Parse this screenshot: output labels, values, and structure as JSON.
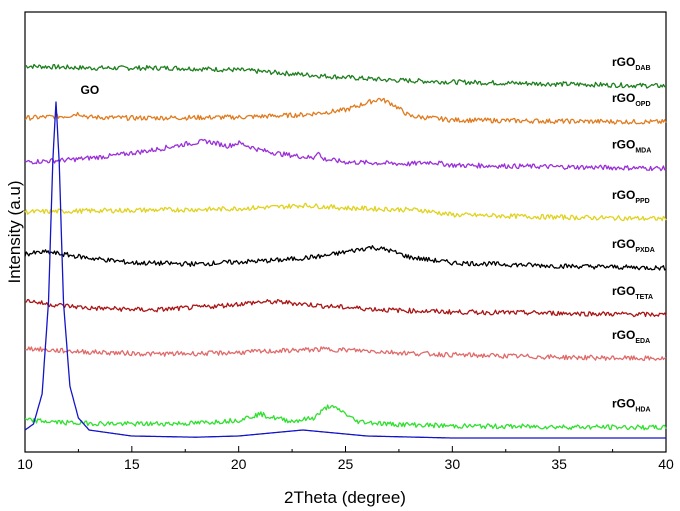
{
  "chart_data": {
    "type": "line",
    "title": "",
    "xlabel": "2Theta (degree)",
    "ylabel": "Intensity (a.u)",
    "xlim": [
      10,
      40
    ],
    "xticks": [
      10,
      15,
      20,
      25,
      30,
      35,
      40
    ],
    "yticks_shown": false,
    "grid": false,
    "legend": "inline-right",
    "series": [
      {
        "label_main": "rGO",
        "label_sub": "DAB",
        "color": "#1e7f1e",
        "points": [
          [
            10,
            0.94
          ],
          [
            13,
            0.935
          ],
          [
            17,
            0.935
          ],
          [
            20,
            0.93
          ],
          [
            24,
            0.915
          ],
          [
            27,
            0.905
          ],
          [
            30,
            0.9
          ],
          [
            35,
            0.895
          ],
          [
            40,
            0.89
          ]
        ]
      },
      {
        "label_main": "rGO",
        "label_sub": "OPD",
        "color": "#e07b1f",
        "points": [
          [
            10,
            0.81
          ],
          [
            12,
            0.815
          ],
          [
            12.5,
            0.822
          ],
          [
            13,
            0.812
          ],
          [
            15,
            0.81
          ],
          [
            20,
            0.812
          ],
          [
            23,
            0.818
          ],
          [
            25,
            0.83
          ],
          [
            26,
            0.848
          ],
          [
            26.6,
            0.858
          ],
          [
            27.2,
            0.845
          ],
          [
            28,
            0.815
          ],
          [
            30,
            0.805
          ],
          [
            35,
            0.802
          ],
          [
            40,
            0.8
          ]
        ]
      },
      {
        "label_main": "rGO",
        "label_sub": "MDA",
        "color": "#9a30d8",
        "points": [
          [
            10,
            0.7
          ],
          [
            12,
            0.705
          ],
          [
            14,
            0.715
          ],
          [
            16,
            0.73
          ],
          [
            17.5,
            0.745
          ],
          [
            18.5,
            0.752
          ],
          [
            19.5,
            0.74
          ],
          [
            20,
            0.748
          ],
          [
            21,
            0.73
          ],
          [
            22,
            0.72
          ],
          [
            23.5,
            0.71
          ],
          [
            23.7,
            0.728
          ],
          [
            23.9,
            0.708
          ],
          [
            25,
            0.7
          ],
          [
            28,
            0.695
          ],
          [
            29,
            0.7
          ],
          [
            30,
            0.692
          ],
          [
            35,
            0.688
          ],
          [
            40,
            0.684
          ]
        ]
      },
      {
        "label_main": "rGO",
        "label_sub": "PPD",
        "color": "#e0d21f",
        "points": [
          [
            10,
            0.575
          ],
          [
            13,
            0.578
          ],
          [
            16,
            0.58
          ],
          [
            19,
            0.582
          ],
          [
            22,
            0.588
          ],
          [
            23,
            0.592
          ],
          [
            25,
            0.585
          ],
          [
            27,
            0.582
          ],
          [
            28.5,
            0.58
          ],
          [
            29,
            0.576
          ],
          [
            30,
            0.568
          ],
          [
            35,
            0.562
          ],
          [
            40,
            0.558
          ]
        ]
      },
      {
        "label_main": "rGO",
        "label_sub": "PXDA",
        "color": "#000000",
        "points": [
          [
            10,
            0.47
          ],
          [
            11,
            0.475
          ],
          [
            13,
            0.46
          ],
          [
            15,
            0.448
          ],
          [
            18,
            0.445
          ],
          [
            20,
            0.45
          ],
          [
            22,
            0.455
          ],
          [
            24,
            0.465
          ],
          [
            25.5,
            0.48
          ],
          [
            26.2,
            0.487
          ],
          [
            27,
            0.48
          ],
          [
            28,
            0.462
          ],
          [
            30,
            0.448
          ],
          [
            35,
            0.44
          ],
          [
            40,
            0.435
          ]
        ]
      },
      {
        "label_main": "rGO",
        "label_sub": "TETA",
        "color": "#aa1515",
        "points": [
          [
            10,
            0.355
          ],
          [
            11,
            0.345
          ],
          [
            13,
            0.335
          ],
          [
            16,
            0.33
          ],
          [
            19,
            0.34
          ],
          [
            21,
            0.35
          ],
          [
            22,
            0.35
          ],
          [
            24,
            0.34
          ],
          [
            27,
            0.33
          ],
          [
            30,
            0.325
          ],
          [
            35,
            0.322
          ],
          [
            40,
            0.318
          ]
        ]
      },
      {
        "label_main": "rGO",
        "label_sub": "EDA",
        "color": "#e06a6a",
        "points": [
          [
            10,
            0.235
          ],
          [
            11,
            0.23
          ],
          [
            13,
            0.225
          ],
          [
            16,
            0.22
          ],
          [
            19,
            0.222
          ],
          [
            22,
            0.228
          ],
          [
            24,
            0.232
          ],
          [
            26,
            0.228
          ],
          [
            28,
            0.222
          ],
          [
            30,
            0.218
          ],
          [
            35,
            0.212
          ],
          [
            40,
            0.208
          ]
        ]
      },
      {
        "label_main": "rGO",
        "label_sub": "HDA",
        "color": "#2fe02f",
        "points": [
          [
            10,
            0.055
          ],
          [
            12,
            0.048
          ],
          [
            15,
            0.045
          ],
          [
            18,
            0.047
          ],
          [
            20,
            0.055
          ],
          [
            21,
            0.07
          ],
          [
            21.5,
            0.062
          ],
          [
            22.5,
            0.052
          ],
          [
            23.5,
            0.06
          ],
          [
            24.2,
            0.09
          ],
          [
            24.8,
            0.078
          ],
          [
            25.5,
            0.052
          ],
          [
            27,
            0.045
          ],
          [
            30,
            0.04
          ],
          [
            35,
            0.038
          ],
          [
            40,
            0.036
          ]
        ]
      },
      {
        "label_main": "GO",
        "label_sub": "",
        "color": "#1414c8",
        "points": [
          [
            10,
            0.03
          ],
          [
            10.4,
            0.045
          ],
          [
            10.8,
            0.12
          ],
          [
            11.1,
            0.35
          ],
          [
            11.3,
            0.7
          ],
          [
            11.45,
            0.85
          ],
          [
            11.6,
            0.7
          ],
          [
            11.8,
            0.35
          ],
          [
            12.1,
            0.14
          ],
          [
            12.5,
            0.06
          ],
          [
            13,
            0.03
          ],
          [
            15,
            0.015
          ],
          [
            18,
            0.012
          ],
          [
            20,
            0.015
          ],
          [
            22,
            0.025
          ],
          [
            23,
            0.03
          ],
          [
            24,
            0.025
          ],
          [
            26,
            0.015
          ],
          [
            30,
            0.01
          ],
          [
            35,
            0.01
          ],
          [
            40,
            0.01
          ]
        ]
      }
    ]
  }
}
